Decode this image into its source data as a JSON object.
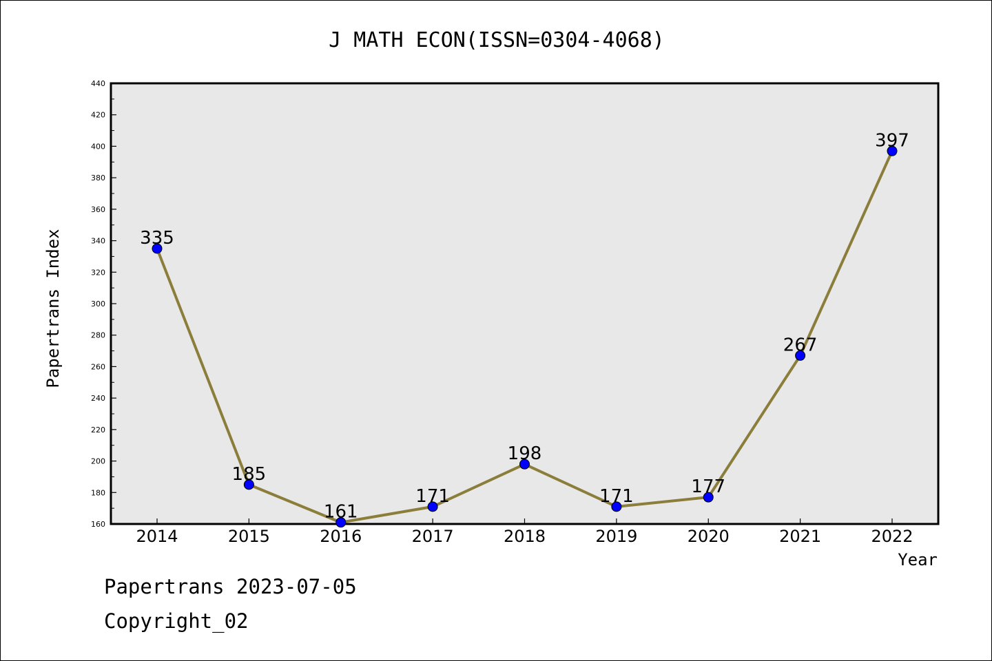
{
  "chart_data": {
    "type": "line",
    "title": "J MATH ECON(ISSN=0304-4068)",
    "xlabel": "Year",
    "ylabel": "Papertrans Index",
    "categories": [
      "2014",
      "2015",
      "2016",
      "2017",
      "2018",
      "2019",
      "2020",
      "2021",
      "2022"
    ],
    "series": [
      {
        "values": [
          335,
          185,
          161,
          171,
          198,
          171,
          177,
          267,
          397
        ]
      }
    ],
    "data_labels": [
      "335",
      "185",
      "161",
      "171",
      "198",
      "171",
      "177",
      "267",
      "397"
    ],
    "ylim": [
      160,
      440
    ],
    "yticks": [
      "160",
      "180",
      "200",
      "220",
      "240",
      "260",
      "280",
      "300",
      "320",
      "340",
      "360",
      "380",
      "400",
      "420",
      "440"
    ],
    "grid": false,
    "legend": "none",
    "colors": {
      "line": "#8B7D3A",
      "marker": "#0000FF",
      "plot_background": "#E8E8E8"
    }
  },
  "footer": {
    "date_text": "Papertrans 2023-07-05",
    "copyright_text": "Copyright_02"
  }
}
